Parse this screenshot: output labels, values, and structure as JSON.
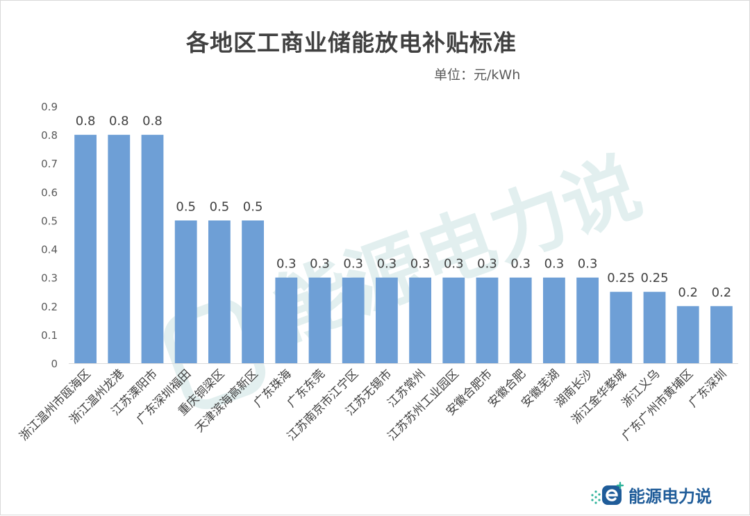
{
  "chart_data": {
    "type": "bar",
    "title": "各地区工商业储能放电补贴标准",
    "unit_label": "单位：元/kWh",
    "categories": [
      "浙江温州市瓯海区",
      "浙江温州龙港",
      "江苏溧阳市",
      "广东深圳福田",
      "重庆铜梁区",
      "天津滨海高新区",
      "广东珠海",
      "广东东莞",
      "江苏南京市江宁区",
      "江苏无锡市",
      "江苏常州",
      "江苏苏州工业园区",
      "安徽合肥市",
      "安徽合肥",
      "安徽芜湖",
      "湖南长沙",
      "浙江金华婺城",
      "浙江义乌",
      "广东广州市黄埔区",
      "广东深圳"
    ],
    "values": [
      0.8,
      0.8,
      0.8,
      0.5,
      0.5,
      0.5,
      0.3,
      0.3,
      0.3,
      0.3,
      0.3,
      0.3,
      0.3,
      0.3,
      0.3,
      0.3,
      0.25,
      0.25,
      0.2,
      0.2
    ],
    "ylim": [
      0,
      0.9
    ],
    "yticks": [
      0,
      0.1,
      0.2,
      0.3,
      0.4,
      0.5,
      0.6,
      0.7,
      0.8,
      0.9
    ],
    "grid": false,
    "legend": "none",
    "bar_color": "#6e9fd6"
  },
  "watermark": {
    "text": "能源电力说",
    "color": "#cfe6e6"
  },
  "brand": {
    "name": "能源电力说",
    "color": "#1f5c99",
    "accent": "#2fb39b"
  }
}
